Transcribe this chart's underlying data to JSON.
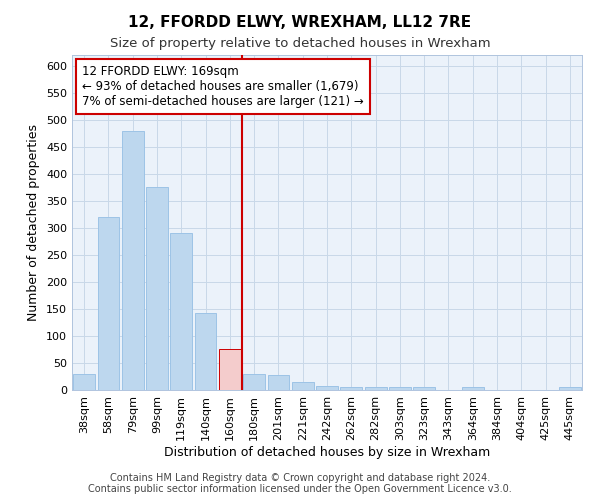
{
  "title": "12, FFORDD ELWY, WREXHAM, LL12 7RE",
  "subtitle": "Size of property relative to detached houses in Wrexham",
  "xlabel": "Distribution of detached houses by size in Wrexham",
  "ylabel": "Number of detached properties",
  "categories": [
    "38sqm",
    "58sqm",
    "79sqm",
    "99sqm",
    "119sqm",
    "140sqm",
    "160sqm",
    "180sqm",
    "201sqm",
    "221sqm",
    "242sqm",
    "262sqm",
    "282sqm",
    "303sqm",
    "323sqm",
    "343sqm",
    "364sqm",
    "384sqm",
    "404sqm",
    "425sqm",
    "445sqm"
  ],
  "values": [
    30,
    320,
    480,
    375,
    290,
    143,
    75,
    30,
    28,
    15,
    8,
    5,
    5,
    5,
    5,
    0,
    5,
    0,
    0,
    0,
    5
  ],
  "bar_color": "#BDD7EE",
  "bar_edge_color": "#9DC3E6",
  "highlight_bar_index": 6,
  "highlight_bar_color": "#F4CCCC",
  "highlight_bar_edge_color": "#CC0000",
  "vline_x": 6.5,
  "vline_color": "#CC0000",
  "annotation_line1": "12 FFORDD ELWY: 169sqm",
  "annotation_line2": "← 93% of detached houses are smaller (1,679)",
  "annotation_line3": "7% of semi-detached houses are larger (121) →",
  "annotation_box_color": "#ffffff",
  "annotation_box_edge": "#CC0000",
  "ylim": [
    0,
    620
  ],
  "yticks": [
    0,
    50,
    100,
    150,
    200,
    250,
    300,
    350,
    400,
    450,
    500,
    550,
    600
  ],
  "footer_line1": "Contains HM Land Registry data © Crown copyright and database right 2024.",
  "footer_line2": "Contains public sector information licensed under the Open Government Licence v3.0.",
  "bg_color": "#ffffff",
  "plot_bg_color": "#EBF2FA",
  "grid_color": "#c8d8e8",
  "title_fontsize": 11,
  "subtitle_fontsize": 9.5,
  "axis_label_fontsize": 9,
  "tick_fontsize": 8,
  "annotation_fontsize": 8.5,
  "footer_fontsize": 7
}
